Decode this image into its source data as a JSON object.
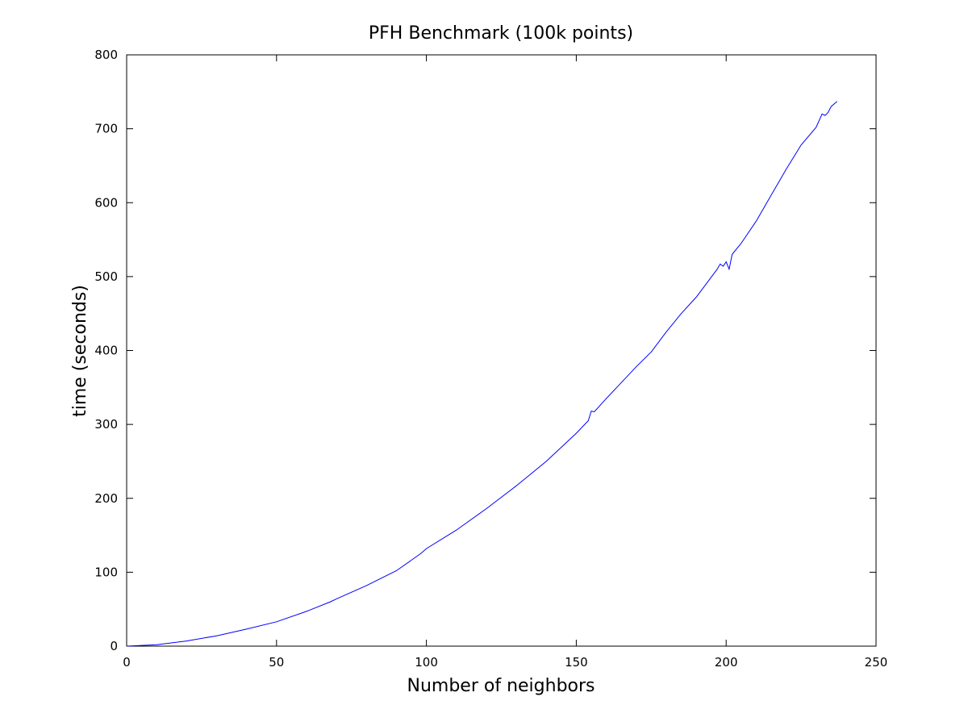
{
  "chart_data": {
    "type": "line",
    "title": "PFH Benchmark (100k points)",
    "xlabel": "Number of neighbors",
    "ylabel": "time (seconds)",
    "xlim": [
      0,
      250
    ],
    "ylim": [
      0,
      800
    ],
    "x_ticks": [
      "0",
      "50",
      "100",
      "150",
      "200",
      "250"
    ],
    "y_ticks": [
      "0",
      "100",
      "200",
      "300",
      "400",
      "500",
      "600",
      "700",
      "800"
    ],
    "grid": false,
    "line_color": "#0000ff",
    "series": [
      {
        "x": [
          0,
          10,
          20,
          30,
          40,
          50,
          60,
          68,
          70,
          80,
          90,
          98,
          100,
          110,
          120,
          130,
          140,
          150,
          154,
          155,
          156,
          160,
          170,
          175,
          180,
          185,
          190,
          197,
          198,
          199,
          200,
          201,
          202,
          205,
          210,
          215,
          220,
          225,
          230,
          232,
          233,
          234,
          235,
          237
        ],
        "y": [
          0,
          2,
          7,
          14,
          23,
          33,
          47,
          60,
          64,
          82,
          102,
          125,
          132,
          157,
          186,
          217,
          250,
          288,
          305,
          318,
          317,
          335,
          378,
          398,
          425,
          450,
          472,
          510,
          517,
          514,
          520,
          510,
          530,
          545,
          575,
          610,
          645,
          678,
          702,
          720,
          718,
          722,
          730,
          737
        ]
      }
    ]
  }
}
